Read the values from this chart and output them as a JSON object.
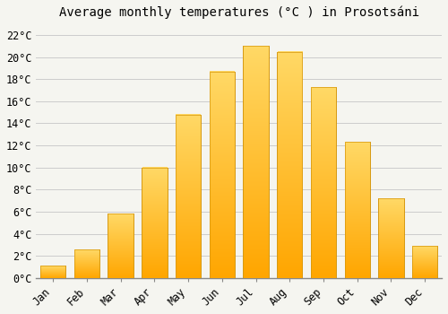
{
  "title": "Average monthly temperatures (°C ) in Prosotsáni",
  "months": [
    "Jan",
    "Feb",
    "Mar",
    "Apr",
    "May",
    "Jun",
    "Jul",
    "Aug",
    "Sep",
    "Oct",
    "Nov",
    "Dec"
  ],
  "values": [
    1.1,
    2.6,
    5.8,
    10.0,
    14.8,
    18.7,
    21.0,
    20.5,
    17.3,
    12.3,
    7.2,
    2.9
  ],
  "bar_color_bottom": "#FFC53A",
  "bar_color_top": "#FFB300",
  "bar_edge_color": "#D4950A",
  "background_color": "#F5F5F0",
  "grid_color": "#CCCCCC",
  "ylim": [
    0,
    23
  ],
  "yticks": [
    0,
    2,
    4,
    6,
    8,
    10,
    12,
    14,
    16,
    18,
    20,
    22
  ],
  "ytick_labels": [
    "0°C",
    "2°C",
    "4°C",
    "6°C",
    "8°C",
    "10°C",
    "12°C",
    "14°C",
    "16°C",
    "18°C",
    "20°C",
    "22°C"
  ],
  "title_fontsize": 10,
  "tick_fontsize": 8.5,
  "font_family": "monospace",
  "bar_width": 0.75
}
